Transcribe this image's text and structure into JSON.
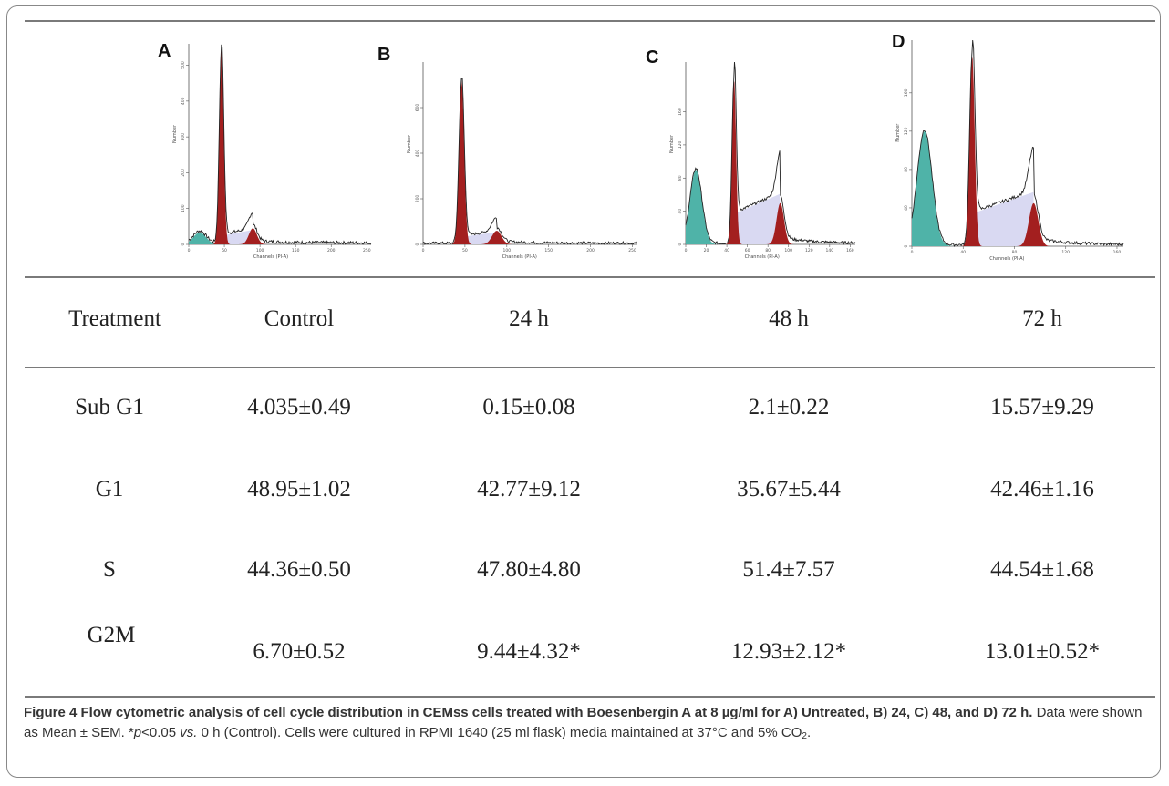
{
  "chart_data": [
    {
      "type": "histogram",
      "panel": "A",
      "xlabel": "Channels (PI-A)",
      "ylabel": "Number",
      "x_ticks": [
        "0",
        "50",
        "100",
        "150",
        "200",
        "250"
      ],
      "x_range": [
        0,
        256
      ],
      "y_ticks": [
        "0",
        "100",
        "200",
        "300",
        "400",
        "500"
      ],
      "y_range": [
        0,
        560
      ],
      "subG1_mean": 2,
      "g1_peak": {
        "x": 46,
        "height": 550
      },
      "g2m_peak": {
        "x": 90,
        "height": 45
      }
    },
    {
      "type": "histogram",
      "panel": "B",
      "xlabel": "Channels (PI-A)",
      "ylabel": "Number",
      "x_ticks": [
        "0",
        "50",
        "100",
        "150",
        "200",
        "250"
      ],
      "x_range": [
        0,
        256
      ],
      "y_ticks": [
        "0",
        "200",
        "400",
        "600"
      ],
      "y_range": [
        0,
        800
      ],
      "subG1_mean": 0,
      "g1_peak": {
        "x": 46,
        "height": 720
      },
      "g2m_peak": {
        "x": 88,
        "height": 60
      }
    },
    {
      "type": "histogram",
      "panel": "C",
      "xlabel": "Channels (PI-A)",
      "ylabel": "Number",
      "x_ticks": [
        "0",
        "20",
        "40",
        "60",
        "80",
        "100",
        "120",
        "140",
        "160"
      ],
      "x_range": [
        0,
        165
      ],
      "y_ticks": [
        "0",
        "40",
        "80",
        "120",
        "160"
      ],
      "y_range": [
        0,
        220
      ],
      "subG1_mean": 15,
      "g1_peak": {
        "x": 47,
        "height": 200
      },
      "g2m_peak": {
        "x": 92,
        "height": 50
      }
    },
    {
      "type": "histogram",
      "panel": "D",
      "xlabel": "Channels (PI-A)",
      "ylabel": "Number",
      "x_ticks": [
        "0",
        "40",
        "80",
        "120",
        "160"
      ],
      "x_range": [
        0,
        165
      ],
      "y_ticks": [
        "0",
        "40",
        "80",
        "120",
        "160"
      ],
      "y_range": [
        0,
        215
      ],
      "subG1_mean": 20,
      "g1_peak": {
        "x": 47,
        "height": 200
      },
      "g2m_peak": {
        "x": 95,
        "height": 45
      }
    }
  ],
  "table": {
    "columns": [
      "Treatment",
      "Control",
      "24 h",
      "48 h",
      "72 h"
    ],
    "rows": [
      {
        "label": "Sub G1",
        "values": [
          "4.035±0.49",
          "0.15±0.08",
          "2.1±0.22",
          "15.57±9.29"
        ]
      },
      {
        "label": "G1",
        "values": [
          "48.95±1.02",
          "42.77±9.12",
          "35.67±5.44",
          "42.46±1.16"
        ]
      },
      {
        "label": "S",
        "values": [
          "44.36±0.50",
          "47.80±4.80",
          "51.4±7.57",
          "44.54±1.68"
        ]
      },
      {
        "label": "G2M",
        "values": [
          "6.70±0.52",
          "9.44±4.32*",
          "12.93±2.12*",
          "13.01±0.52*"
        ]
      }
    ]
  },
  "caption": {
    "bold": "Figure 4 Flow cytometric analysis of cell cycle distribution in CEMss cells treated with Boesenbergin A at 8 µg/ml for A) Untreated, B) 24, C) 48, and D) 72 h.",
    "p1": " Data were shown as Mean ± SEM. *",
    "p_italic": "p",
    "p2": "<0.05 ",
    "vs_italic": "vs.",
    "p3": " 0 h (Control). Cells were cultured in RPMI 1640 (25 ml flask) media maintained at 37°C and 5% CO",
    "sub": "2",
    "p4": "."
  },
  "colors": {
    "g1_fill": "#a31f1f",
    "s_fill": "#d9d9f2",
    "subg1_fill": "#4fb3a8",
    "line": "#222222"
  }
}
